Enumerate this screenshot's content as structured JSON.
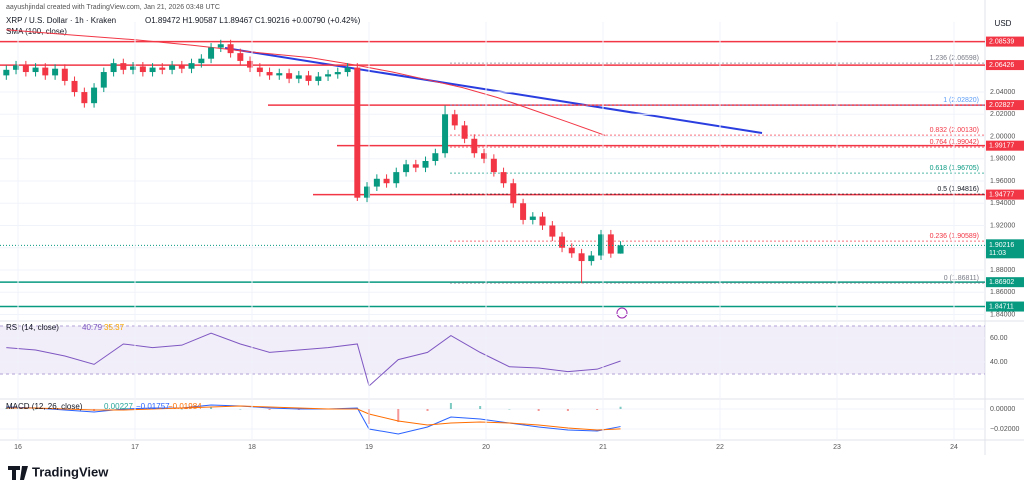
{
  "header": {
    "credit": "aayushjindal created with TradingView.com, Jan 21, 2026 03:48 UTC",
    "symbol": "XRP / U.S. Dollar · 1h · Kraken",
    "ohlc": "O1.89472 H1.90587 L1.89467 C1.90216 +0.00790 (+0.42%)",
    "sma": "SMA (100, close)",
    "currency": "USD",
    "countdown": "11:03",
    "logo": "TradingView"
  },
  "chart_data": [
    {
      "type": "candlestick",
      "xlim": [
        15.846,
        24.265
      ],
      "ylim": [
        1.835,
        2.103
      ],
      "yticks": [
        {
          "value": 1.84,
          "label": "1.84000"
        },
        {
          "value": 1.86,
          "label": "1.86000"
        },
        {
          "value": 1.88,
          "label": "1.88000"
        },
        {
          "value": 1.9,
          "label": "1.90000"
        },
        {
          "value": 1.92,
          "label": "1.92000"
        },
        {
          "value": 1.94,
          "label": "1.94000"
        },
        {
          "value": 1.96,
          "label": "1.96000"
        },
        {
          "value": 1.98,
          "label": "1.98000"
        },
        {
          "value": 2.0,
          "label": "2.00000"
        },
        {
          "value": 2.02,
          "label": "2.02000"
        },
        {
          "value": 2.04,
          "label": "2.04000"
        }
      ],
      "up_color": "#089981",
      "down_color": "#f23645",
      "x": [
        15.9,
        15.983,
        16.067,
        16.15,
        16.233,
        16.317,
        16.4,
        16.483,
        16.567,
        16.65,
        16.733,
        16.817,
        16.9,
        16.983,
        17.067,
        17.15,
        17.233,
        17.317,
        17.4,
        17.483,
        17.567,
        17.65,
        17.733,
        17.817,
        17.9,
        17.983,
        18.067,
        18.15,
        18.233,
        18.317,
        18.4,
        18.483,
        18.567,
        18.65,
        18.733,
        18.817,
        18.9,
        18.983,
        19.067,
        19.15,
        19.233,
        19.317,
        19.4,
        19.483,
        19.567,
        19.65,
        19.733,
        19.817,
        19.9,
        19.983,
        20.067,
        20.15,
        20.233,
        20.317,
        20.4,
        20.483,
        20.567,
        20.65,
        20.733,
        20.817,
        20.9,
        20.983,
        21.067,
        21.15
      ],
      "open": [
        2.055,
        2.06,
        2.064,
        2.058,
        2.062,
        2.055,
        2.061,
        2.05,
        2.04,
        2.03,
        2.044,
        2.058,
        2.066,
        2.06,
        2.063,
        2.058,
        2.062,
        2.06,
        2.064,
        2.061,
        2.066,
        2.07,
        2.08,
        2.083,
        2.075,
        2.068,
        2.062,
        2.058,
        2.055,
        2.057,
        2.052,
        2.055,
        2.05,
        2.054,
        2.056,
        2.058,
        2.062,
        1.945,
        1.955,
        1.962,
        1.958,
        1.968,
        1.975,
        1.972,
        1.978,
        1.985,
        2.02,
        2.01,
        1.998,
        1.985,
        1.98,
        1.968,
        1.958,
        1.94,
        1.925,
        1.928,
        1.92,
        1.91,
        1.9,
        1.895,
        1.888,
        1.893,
        1.912,
        1.89472
      ],
      "high": [
        2.064,
        2.068,
        2.068,
        2.066,
        2.066,
        2.065,
        2.065,
        2.054,
        2.044,
        2.048,
        2.062,
        2.07,
        2.07,
        2.067,
        2.067,
        2.066,
        2.066,
        2.068,
        2.068,
        2.07,
        2.074,
        2.084,
        2.087,
        2.087,
        2.079,
        2.072,
        2.066,
        2.062,
        2.061,
        2.061,
        2.059,
        2.059,
        2.058,
        2.06,
        2.062,
        2.066,
        2.066,
        1.959,
        1.966,
        1.966,
        1.972,
        1.979,
        1.979,
        1.982,
        1.989,
        2.028,
        2.024,
        2.014,
        2.002,
        1.989,
        1.984,
        1.972,
        1.962,
        1.944,
        1.932,
        1.932,
        1.924,
        1.914,
        1.904,
        1.899,
        1.897,
        1.916,
        1.916,
        1.90587
      ],
      "low": [
        2.051,
        2.056,
        2.054,
        2.054,
        2.051,
        2.051,
        2.046,
        2.036,
        2.026,
        2.026,
        2.04,
        2.054,
        2.056,
        2.056,
        2.054,
        2.054,
        2.056,
        2.056,
        2.057,
        2.057,
        2.062,
        2.066,
        2.076,
        2.071,
        2.064,
        2.058,
        2.054,
        2.051,
        2.051,
        2.048,
        2.048,
        2.046,
        2.046,
        2.05,
        2.052,
        2.054,
        1.942,
        1.941,
        1.951,
        1.954,
        1.954,
        1.964,
        1.968,
        1.968,
        1.974,
        1.981,
        2.006,
        1.994,
        1.981,
        1.976,
        1.964,
        1.954,
        1.936,
        1.921,
        1.921,
        1.916,
        1.906,
        1.896,
        1.891,
        1.86811,
        1.884,
        1.889,
        1.891,
        1.89467
      ],
      "close": [
        2.06,
        2.064,
        2.058,
        2.062,
        2.055,
        2.061,
        2.05,
        2.04,
        2.03,
        2.044,
        2.058,
        2.066,
        2.06,
        2.063,
        2.058,
        2.062,
        2.06,
        2.064,
        2.061,
        2.066,
        2.07,
        2.08,
        2.083,
        2.075,
        2.068,
        2.062,
        2.058,
        2.055,
        2.057,
        2.052,
        2.055,
        2.05,
        2.054,
        2.056,
        2.058,
        2.062,
        1.945,
        1.955,
        1.962,
        1.958,
        1.968,
        1.975,
        1.972,
        1.978,
        1.985,
        2.02,
        2.01,
        1.998,
        1.985,
        1.98,
        1.968,
        1.958,
        1.94,
        1.925,
        1.928,
        1.92,
        1.91,
        1.9,
        1.895,
        1.888,
        1.893,
        1.912,
        1.89472,
        1.90216
      ],
      "sma": {
        "color": "#f23645",
        "x": [
          15.9,
          16.5,
          17.0,
          17.5,
          18.0,
          18.5,
          18.9,
          19.2,
          19.5,
          19.8,
          20.1,
          20.4,
          20.7,
          21.02
        ],
        "values": [
          2.096,
          2.091,
          2.087,
          2.082,
          2.076,
          2.071,
          2.064,
          2.058,
          2.051,
          2.044,
          2.035,
          2.024,
          2.013,
          2.001
        ]
      },
      "levels": [
        {
          "value": 2.08539,
          "color": "#f23645"
        },
        {
          "value": 2.06426,
          "color": "#f23645"
        },
        {
          "value": 2.02827,
          "color": "#f23645"
        },
        {
          "value": 1.99177,
          "color": "#f23645"
        },
        {
          "value": 1.94777,
          "color": "#f23645"
        },
        {
          "value": 1.86902,
          "color": "#089981"
        },
        {
          "value": 1.84711,
          "color": "#089981"
        }
      ],
      "fib": [
        {
          "value": 2.06598,
          "label": "1.236 (2.06598)",
          "color": "#787b86"
        },
        {
          "value": 2.0282,
          "label": "1 (2.02820)",
          "color": "#5b9cf6"
        },
        {
          "value": 2.0013,
          "label": "0.832 (2.00130)",
          "color": "#f23645"
        },
        {
          "value": 1.99042,
          "label": "0.764 (1.99042)",
          "color": "#f23645"
        },
        {
          "value": 1.96705,
          "label": "0.618 (1.96705)",
          "color": "#089981"
        },
        {
          "value": 1.94816,
          "label": "0.5 (1.94816)",
          "color": "#131722"
        },
        {
          "value": 1.90589,
          "label": "0.236 (1.90589)",
          "color": "#f23645"
        },
        {
          "value": 1.86811,
          "label": "0 (1.86811)",
          "color": "#787b86"
        }
      ]
    },
    {
      "type": "line",
      "title": "RSI (14, close)",
      "last_labels": [
        "40.79",
        "35.37"
      ],
      "xlim": [
        15.846,
        24.265
      ],
      "ylim": [
        10,
        73.3
      ],
      "yticks": [
        {
          "value": 40,
          "label": "40.00"
        },
        {
          "value": 60,
          "label": "60.00"
        }
      ],
      "band": [
        30,
        70
      ],
      "color": "#7e57c2",
      "x": [
        15.9,
        16.15,
        16.4,
        16.65,
        16.9,
        17.15,
        17.4,
        17.65,
        17.9,
        18.15,
        18.4,
        18.65,
        18.9,
        19.0,
        19.25,
        19.5,
        19.7,
        19.95,
        20.2,
        20.45,
        20.7,
        20.95,
        21.15
      ],
      "values": [
        52,
        50,
        45,
        38,
        55,
        52,
        54,
        64,
        55,
        48,
        50,
        52,
        55,
        20,
        42,
        48,
        62,
        48,
        36,
        35,
        32,
        34,
        40.79
      ]
    },
    {
      "type": "macd",
      "title": "MACD (12, 26, close)",
      "last_labels": [
        "0.00227",
        "−0.01757",
        "−0.01984"
      ],
      "xlim": [
        15.846,
        24.265
      ],
      "ylim": [
        -0.031,
        0.009
      ],
      "yticks": [
        {
          "value": -0.02,
          "label": "−0.02000"
        },
        {
          "value": 0,
          "label": "0.00000"
        }
      ],
      "xticks": [
        16,
        17,
        18,
        19,
        20,
        21,
        22,
        23,
        24
      ],
      "x": [
        15.9,
        16.15,
        16.4,
        16.65,
        16.9,
        17.15,
        17.4,
        17.65,
        17.9,
        18.15,
        18.4,
        18.65,
        18.9,
        19.0,
        19.25,
        19.5,
        19.7,
        19.95,
        20.2,
        20.45,
        20.7,
        20.95,
        21.15
      ],
      "macd": {
        "color": "#2962ff",
        "values": [
          0.002,
          0.001,
          -0.001,
          -0.003,
          0.0,
          0.001,
          0.001,
          0.004,
          0.003,
          0.001,
          0.0,
          0.0,
          0.001,
          -0.02,
          -0.025,
          -0.018,
          -0.008,
          -0.01,
          -0.014,
          -0.018,
          -0.021,
          -0.022,
          -0.01757
        ]
      },
      "signal": {
        "color": "#ff6d00",
        "values": [
          0.001,
          0.001,
          0.0,
          -0.001,
          -0.001,
          0.0,
          0.001,
          0.002,
          0.003,
          0.002,
          0.001,
          0.0,
          0.0,
          -0.005,
          -0.012,
          -0.016,
          -0.014,
          -0.013,
          -0.014,
          -0.016,
          -0.019,
          -0.021,
          -0.01984
        ]
      },
      "histogram": {
        "up_color": "#26a69a",
        "down_color": "#ef5350",
        "values": [
          0.001,
          0.0,
          -0.001,
          -0.002,
          0.001,
          0.001,
          0.0,
          0.002,
          0.0,
          -0.001,
          -0.001,
          0.0,
          0.001,
          -0.015,
          -0.013,
          -0.002,
          0.006,
          0.003,
          0.0,
          -0.002,
          -0.002,
          -0.001,
          0.00227
        ]
      }
    }
  ]
}
